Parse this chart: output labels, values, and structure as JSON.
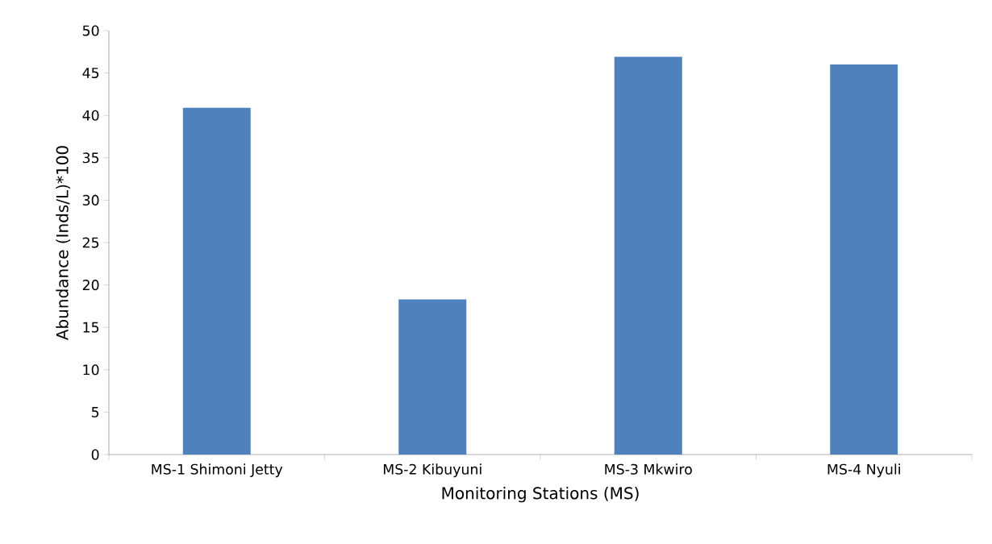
{
  "chart_data": {
    "type": "bar",
    "xlabel": "Monitoring Stations (MS)",
    "ylabel": "Abundance (Inds/L)*100",
    "categories": [
      "MS-1 Shimoni Jetty",
      "MS-2 Kibuyuni",
      "MS-3 Mkwiro",
      "MS-4 Nyuli"
    ],
    "values": [
      40.9,
      18.3,
      46.9,
      46.0
    ],
    "color": "#4f81bd",
    "ylim": [
      0,
      50
    ],
    "yticks": [
      0,
      5,
      10,
      15,
      20,
      25,
      30,
      35,
      40,
      45,
      50
    ],
    "grid": false
  }
}
